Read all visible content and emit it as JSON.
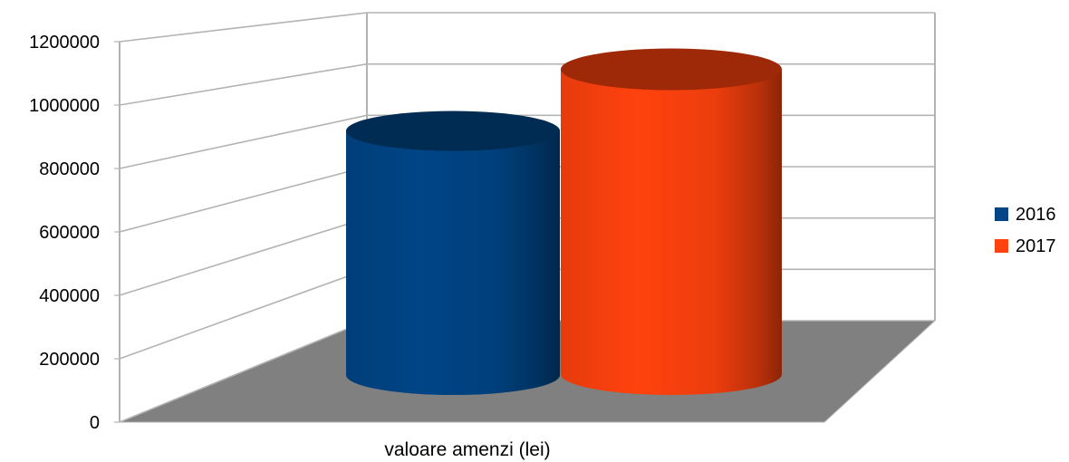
{
  "chart_data": {
    "type": "bar",
    "style": "3d-cylinder",
    "title": "",
    "xlabel": "",
    "ylabel": "",
    "categories": [
      "valoare amenzi (lei)"
    ],
    "series": [
      {
        "name": "2016",
        "color": "#004586",
        "values": [
          885000
        ]
      },
      {
        "name": "2017",
        "color": "#ff420e",
        "values": [
          1105000
        ]
      }
    ],
    "ylim": [
      0,
      1200000
    ],
    "y_ticks": [
      "0",
      "200000",
      "400000",
      "600000",
      "800000",
      "1000000",
      "1200000"
    ],
    "grid": true,
    "floor_color": "#808080",
    "legend_position": "right"
  }
}
